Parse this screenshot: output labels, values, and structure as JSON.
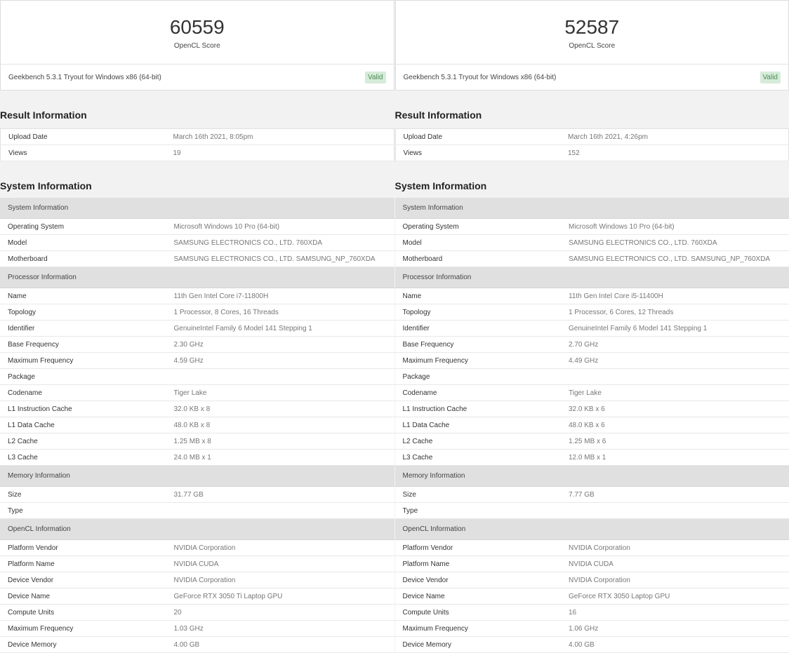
{
  "results": [
    {
      "score": "60559",
      "score_label": "OpenCL Score",
      "version": "Geekbench 5.3.1 Tryout for Windows x86 (64-bit)",
      "status": "Valid",
      "result_heading": "Result Information",
      "result_rows": [
        {
          "label": "Upload Date",
          "value": "March 16th 2021, 8:05pm"
        },
        {
          "label": "Views",
          "value": "19"
        }
      ],
      "system_heading": "System Information",
      "sections": [
        {
          "title": "System Information",
          "rows": [
            {
              "label": "Operating System",
              "value": "Microsoft Windows 10 Pro (64-bit)"
            },
            {
              "label": "Model",
              "value": "SAMSUNG ELECTRONICS CO., LTD. 760XDA"
            },
            {
              "label": "Motherboard",
              "value": "SAMSUNG ELECTRONICS CO., LTD. SAMSUNG_NP_760XDA"
            }
          ]
        },
        {
          "title": "Processor Information",
          "rows": [
            {
              "label": "Name",
              "value": "11th Gen Intel Core i7-11800H"
            },
            {
              "label": "Topology",
              "value": "1 Processor, 8 Cores, 16 Threads"
            },
            {
              "label": "Identifier",
              "value": "GenuineIntel Family 6 Model 141 Stepping 1"
            },
            {
              "label": "Base Frequency",
              "value": "2.30 GHz"
            },
            {
              "label": "Maximum Frequency",
              "value": "4.59 GHz"
            },
            {
              "label": "Package",
              "value": ""
            },
            {
              "label": "Codename",
              "value": "Tiger Lake"
            },
            {
              "label": "L1 Instruction Cache",
              "value": "32.0 KB x 8"
            },
            {
              "label": "L1 Data Cache",
              "value": "48.0 KB x 8"
            },
            {
              "label": "L2 Cache",
              "value": "1.25 MB x 8"
            },
            {
              "label": "L3 Cache",
              "value": "24.0 MB x 1"
            }
          ]
        },
        {
          "title": "Memory Information",
          "rows": [
            {
              "label": "Size",
              "value": "31.77 GB"
            },
            {
              "label": "Type",
              "value": ""
            }
          ]
        },
        {
          "title": "OpenCL Information",
          "rows": [
            {
              "label": "Platform Vendor",
              "value": "NVIDIA Corporation"
            },
            {
              "label": "Platform Name",
              "value": "NVIDIA CUDA"
            },
            {
              "label": "Device Vendor",
              "value": "NVIDIA Corporation"
            },
            {
              "label": "Device Name",
              "value": "GeForce RTX 3050 Ti Laptop GPU"
            },
            {
              "label": "Compute Units",
              "value": "20"
            },
            {
              "label": "Maximum Frequency",
              "value": "1.03 GHz"
            },
            {
              "label": "Device Memory",
              "value": "4.00 GB"
            }
          ]
        }
      ]
    },
    {
      "score": "52587",
      "score_label": "OpenCL Score",
      "version": "Geekbench 5.3.1 Tryout for Windows x86 (64-bit)",
      "status": "Valid",
      "result_heading": "Result Information",
      "result_rows": [
        {
          "label": "Upload Date",
          "value": "March 16th 2021, 4:26pm"
        },
        {
          "label": "Views",
          "value": "152"
        }
      ],
      "system_heading": "System Information",
      "sections": [
        {
          "title": "System Information",
          "rows": [
            {
              "label": "Operating System",
              "value": "Microsoft Windows 10 Pro (64-bit)"
            },
            {
              "label": "Model",
              "value": "SAMSUNG ELECTRONICS CO., LTD. 760XDA"
            },
            {
              "label": "Motherboard",
              "value": "SAMSUNG ELECTRONICS CO., LTD. SAMSUNG_NP_760XDA"
            }
          ]
        },
        {
          "title": "Processor Information",
          "rows": [
            {
              "label": "Name",
              "value": "11th Gen Intel Core i5-11400H"
            },
            {
              "label": "Topology",
              "value": "1 Processor, 6 Cores, 12 Threads"
            },
            {
              "label": "Identifier",
              "value": "GenuineIntel Family 6 Model 141 Stepping 1"
            },
            {
              "label": "Base Frequency",
              "value": "2.70 GHz"
            },
            {
              "label": "Maximum Frequency",
              "value": "4.49 GHz"
            },
            {
              "label": "Package",
              "value": ""
            },
            {
              "label": "Codename",
              "value": "Tiger Lake"
            },
            {
              "label": "L1 Instruction Cache",
              "value": "32.0 KB x 6"
            },
            {
              "label": "L1 Data Cache",
              "value": "48.0 KB x 6"
            },
            {
              "label": "L2 Cache",
              "value": "1.25 MB x 6"
            },
            {
              "label": "L3 Cache",
              "value": "12.0 MB x 1"
            }
          ]
        },
        {
          "title": "Memory Information",
          "rows": [
            {
              "label": "Size",
              "value": "7.77 GB"
            },
            {
              "label": "Type",
              "value": ""
            }
          ]
        },
        {
          "title": "OpenCL Information",
          "rows": [
            {
              "label": "Platform Vendor",
              "value": "NVIDIA Corporation"
            },
            {
              "label": "Platform Name",
              "value": "NVIDIA CUDA"
            },
            {
              "label": "Device Vendor",
              "value": "NVIDIA Corporation"
            },
            {
              "label": "Device Name",
              "value": "GeForce RTX 3050 Laptop GPU"
            },
            {
              "label": "Compute Units",
              "value": "16"
            },
            {
              "label": "Maximum Frequency",
              "value": "1.06 GHz"
            },
            {
              "label": "Device Memory",
              "value": "4.00 GB"
            }
          ]
        }
      ]
    }
  ]
}
